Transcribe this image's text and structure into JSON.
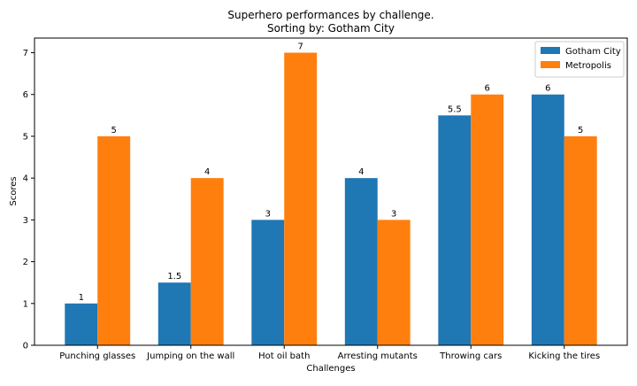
{
  "chart_data": {
    "type": "bar",
    "title": "Superhero performances by challenge.",
    "subtitle": "Sorting by: Gotham City",
    "xlabel": "Challenges",
    "ylabel": "Scores",
    "categories": [
      "Punching glasses",
      "Jumping on the wall",
      "Hot oil bath",
      "Arresting mutants",
      "Throwing cars",
      "Kicking the tires"
    ],
    "ylim": [
      0,
      7.35
    ],
    "yticks": [
      "0",
      "1",
      "2",
      "3",
      "4",
      "5",
      "6",
      "7"
    ],
    "grid": false,
    "legend_position": "top-right",
    "series": [
      {
        "name": "Gotham City",
        "color": "#1f77b4",
        "values": [
          1,
          1.5,
          3,
          4,
          5.5,
          6
        ],
        "labels": [
          "1",
          "1.5",
          "3",
          "4",
          "5.5",
          "6"
        ]
      },
      {
        "name": "Metropolis",
        "color": "#ff7f0e",
        "values": [
          5,
          4,
          7,
          3,
          6,
          5
        ],
        "labels": [
          "5",
          "4",
          "7",
          "3",
          "6",
          "5"
        ]
      }
    ]
  }
}
